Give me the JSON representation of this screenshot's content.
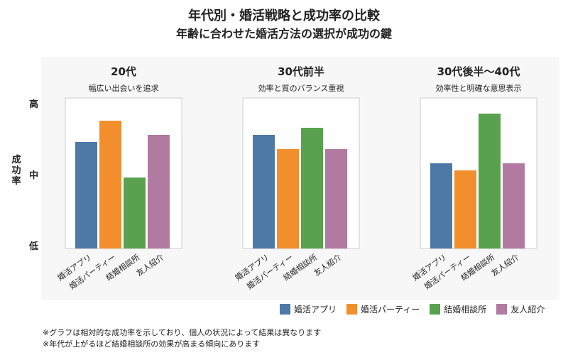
{
  "chart_data": {
    "type": "bar",
    "title": "年代別・婚活戦略と成功率の比較",
    "subtitle": "年齢に合わせた婚活方法の選択が成功の鍵",
    "ylabel": "成功率",
    "y_levels": [
      "高",
      "中",
      "低"
    ],
    "ylim": [
      0,
      100
    ],
    "categories": [
      "婚活アプリ",
      "婚活パーティー",
      "結婚相談所",
      "友人紹介"
    ],
    "colors": [
      "#4e79a7",
      "#f28e2b",
      "#59a14f",
      "#b07aa1"
    ],
    "legend_position": "bottom-right",
    "panels": [
      {
        "title": "20代",
        "subtitle": "幅広い出会いを追求",
        "values": [
          75,
          90,
          50,
          80
        ]
      },
      {
        "title": "30代前半",
        "subtitle": "効率と質のバランス重視",
        "values": [
          80,
          70,
          85,
          70
        ]
      },
      {
        "title": "30代後半〜40代",
        "subtitle": "効率性と明確な意思表示",
        "values": [
          60,
          55,
          95,
          60
        ]
      }
    ]
  },
  "notes": [
    "※グラフは相対的な成功率を示しており、個人の状況によって結果は異なります",
    "※年代が上がるほど結婚相談所の効果が高まる傾向にあります"
  ]
}
